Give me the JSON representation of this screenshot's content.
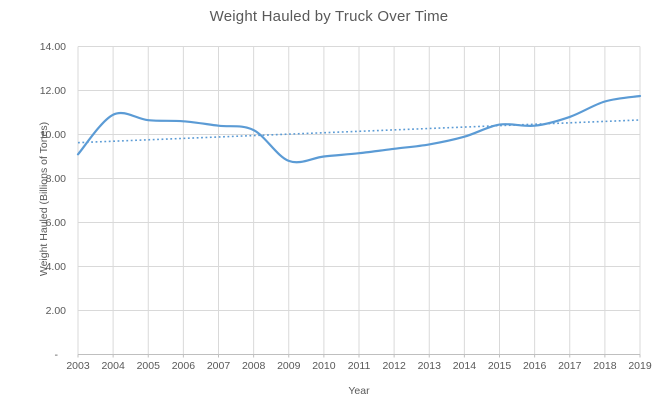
{
  "chart": {
    "title": "Weight Hauled by Truck Over Time",
    "x_axis_title": "Year",
    "y_axis_title": "Weight Hauled (Billions of Tones)"
  },
  "chart_data": {
    "type": "line",
    "title": "Weight Hauled by Truck Over Time",
    "xlabel": "Year",
    "ylabel": "Weight Hauled (Billions of Tones)",
    "categories": [
      2003,
      2004,
      2005,
      2006,
      2007,
      2008,
      2009,
      2010,
      2011,
      2012,
      2013,
      2014,
      2015,
      2016,
      2017,
      2018,
      2019
    ],
    "series": [
      {
        "name": "Weight Hauled",
        "line_style": "solid-smooth",
        "values": [
          9.1,
          10.9,
          10.65,
          10.6,
          10.4,
          10.2,
          8.8,
          9.0,
          9.15,
          9.35,
          9.55,
          9.9,
          10.45,
          10.4,
          10.8,
          11.5,
          11.75
        ]
      }
    ],
    "trendline": {
      "type": "linear",
      "line_style": "dotted",
      "start_value": 9.63,
      "end_value": 10.66
    },
    "ylim": [
      0,
      14
    ],
    "y_ticks": [
      0,
      2,
      4,
      6,
      8,
      10,
      12,
      14
    ],
    "y_tick_labels": [
      "-",
      "2.00",
      "4.00",
      "6.00",
      "8.00",
      "10.00",
      "12.00",
      "14.00"
    ],
    "grid": true,
    "legend": "none",
    "colors": {
      "series": "#5B9BD5",
      "trendline": "#5B9BD5",
      "gridline": "#D9D9D9",
      "axis_line": "#BFBFBF",
      "text": "#595959"
    }
  }
}
